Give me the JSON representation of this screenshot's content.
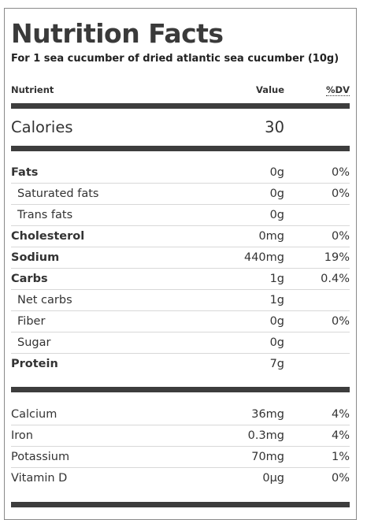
{
  "title": "Nutrition Facts",
  "subtitle": "For 1 sea cucumber of dried atlantic sea cucumber (10g)",
  "header": {
    "nutrient": "Nutrient",
    "value": "Value",
    "dv": "%DV"
  },
  "calories": {
    "label": "Calories",
    "value": "30"
  },
  "macros": [
    {
      "name": "Fats",
      "value": "0g",
      "dv": "0%"
    },
    {
      "name": "Saturated fats",
      "value": "0g",
      "dv": "0%"
    },
    {
      "name": "Trans fats",
      "value": "0g",
      "dv": ""
    },
    {
      "name": "Cholesterol",
      "value": "0mg",
      "dv": "0%"
    },
    {
      "name": "Sodium",
      "value": "440mg",
      "dv": "19%"
    },
    {
      "name": "Carbs",
      "value": "1g",
      "dv": "0.4%"
    },
    {
      "name": "Net carbs",
      "value": "1g",
      "dv": ""
    },
    {
      "name": "Fiber",
      "value": "0g",
      "dv": "0%"
    },
    {
      "name": "Sugar",
      "value": "0g",
      "dv": ""
    },
    {
      "name": "Protein",
      "value": "7g",
      "dv": ""
    }
  ],
  "micros": [
    {
      "name": "Calcium",
      "value": "36mg",
      "dv": "4%"
    },
    {
      "name": "Iron",
      "value": "0.3mg",
      "dv": "4%"
    },
    {
      "name": "Potassium",
      "value": "70mg",
      "dv": "1%"
    },
    {
      "name": "Vitamin D",
      "value": "0µg",
      "dv": "0%"
    }
  ]
}
